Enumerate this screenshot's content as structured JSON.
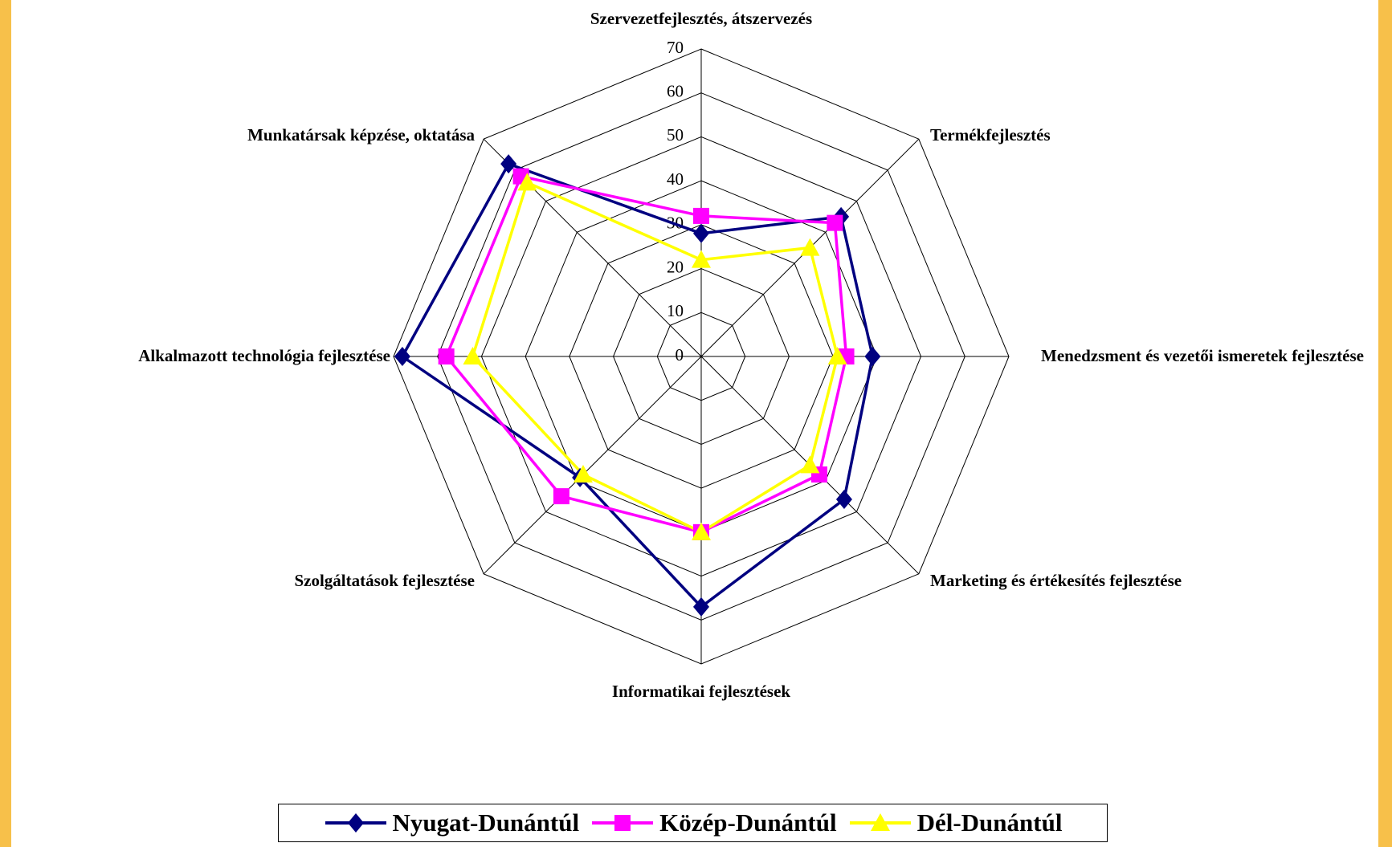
{
  "chart_data": {
    "type": "radar",
    "categories": [
      "Szervezetfejlesztés, átszervezés",
      "Termékfejlesztés",
      "Menedzsment és vezetői ismeretek fejlesztése",
      "Marketing és értékesítés fejlesztése",
      "Informatikai fejlesztések",
      "Szolgáltatások fejlesztése",
      "Alkalmazott technológia fejlesztése",
      "Munkatársak képzése, oktatása"
    ],
    "series": [
      {
        "name": "Nyugat-Dunántúl",
        "color": "#000080",
        "marker": "diamond",
        "values": [
          28,
          45,
          39,
          46,
          57,
          39,
          68,
          62
        ]
      },
      {
        "name": "Közép-Dunántúl",
        "color": "#ff00ff",
        "marker": "square",
        "values": [
          32,
          43,
          33,
          38,
          40,
          45,
          58,
          58
        ]
      },
      {
        "name": "Dél-Dunántúl",
        "color": "#ffff00",
        "marker": "triangle",
        "values": [
          22,
          35,
          31,
          35,
          40,
          38,
          52,
          56
        ]
      }
    ],
    "ylim": [
      0,
      70
    ],
    "yticks": [
      0,
      10,
      20,
      30,
      40,
      50,
      60,
      70
    ],
    "grid": true,
    "legend": "bottom"
  }
}
